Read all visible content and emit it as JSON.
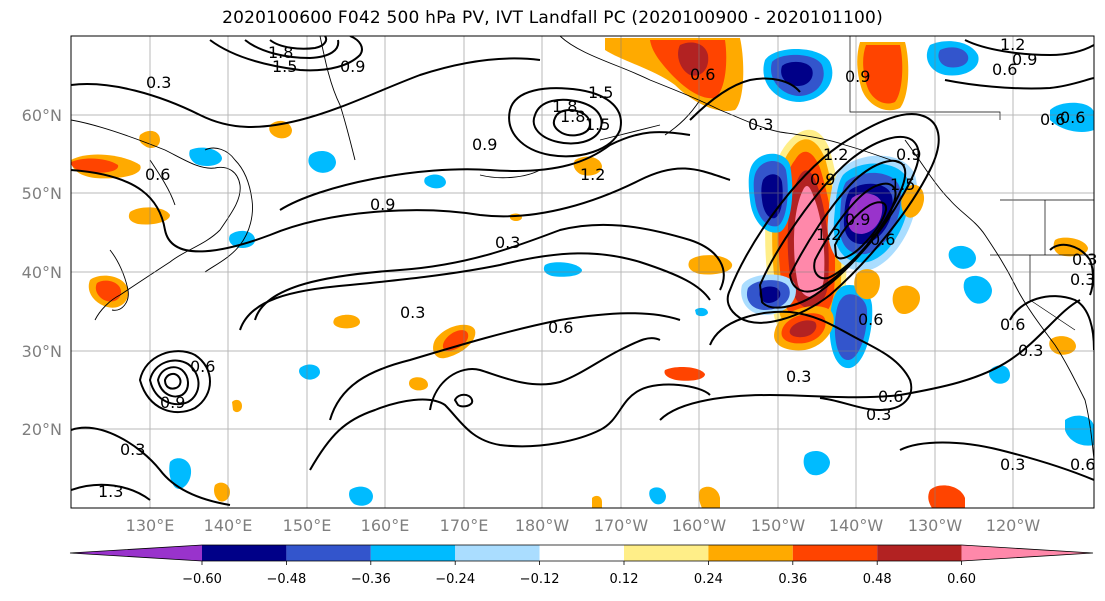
{
  "title": "2020100600 F042 500 hPa PV, IVT Landfall PC (2020100900 - 2020101100)",
  "map": {
    "lat_ticks": [
      "60°N",
      "50°N",
      "40°N",
      "30°N",
      "20°N"
    ],
    "lon_ticks": [
      "130°E",
      "140°E",
      "150°E",
      "160°E",
      "170°E",
      "180°W",
      "170°W",
      "160°W",
      "150°W",
      "140°W",
      "130°W",
      "120°W"
    ],
    "contour_labels": [
      "1.8",
      "1.5",
      "0.9",
      "0.3",
      "0.6",
      "0.9",
      "1.8",
      "1.5",
      "0.9",
      "1.2",
      "0.9",
      "0.3",
      "0.9",
      "0.6",
      "0.3",
      "0.6",
      "0.3",
      "1.2",
      "0.9",
      "0.6",
      "0.6",
      "0.6",
      "0.3",
      "0.3",
      "0.6",
      "0.3",
      "0.6",
      "0.3",
      "0.6",
      "0.9",
      "0.3",
      "1.3",
      "0.6",
      "0.3",
      "0.9",
      "1.2",
      "0.6",
      "0.3",
      "1.8",
      "1.5",
      "1.2",
      "1.5",
      "0.9",
      "0.6"
    ]
  },
  "colorbar": {
    "colors": [
      "#9933cc",
      "#000088",
      "#3355cc",
      "#00bbff",
      "#aaddff",
      "#ffffff",
      "#ffee88",
      "#ffaa00",
      "#ff4400",
      "#b22222",
      "#ff88aa"
    ],
    "tick_labels": [
      "−0.60",
      "−0.48",
      "−0.36",
      "−0.24",
      "−0.12",
      "0.12",
      "0.24",
      "0.36",
      "0.48",
      "0.60"
    ]
  }
}
